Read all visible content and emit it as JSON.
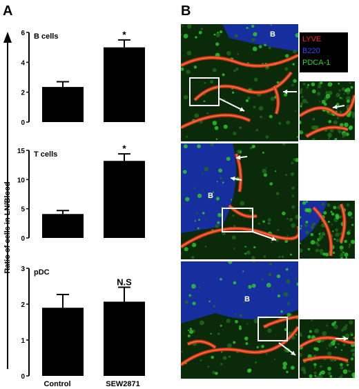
{
  "panel_labels": {
    "a": "A",
    "b": "B"
  },
  "ylabel": "Ratio of cells in LN/Blood",
  "chart_data": [
    {
      "type": "bar",
      "title": "B cells",
      "categories": [
        "Control",
        "SEW2871"
      ],
      "values": [
        2.35,
        5.0
      ],
      "errors": [
        0.35,
        0.5
      ],
      "ylim": [
        0,
        6
      ],
      "yticks": [
        "0",
        "2",
        "4",
        "6"
      ],
      "annotations": [
        "",
        "*"
      ]
    },
    {
      "type": "bar",
      "title": "T cells",
      "categories": [
        "Control",
        "SEW2871"
      ],
      "values": [
        4.1,
        13.2
      ],
      "errors": [
        0.6,
        1.2
      ],
      "ylim": [
        0,
        15
      ],
      "yticks": [
        "0",
        "5",
        "10",
        "15"
      ],
      "annotations": [
        "",
        "*"
      ]
    },
    {
      "type": "bar",
      "title": "pDC",
      "categories": [
        "Control",
        "SEW2871"
      ],
      "values": [
        1.9,
        2.07
      ],
      "errors": [
        0.37,
        0.4
      ],
      "ylim": [
        0,
        3
      ],
      "yticks": [
        "0",
        "1",
        "2",
        "3"
      ],
      "annotations": [
        "",
        "N.S"
      ]
    }
  ],
  "xlabels": [
    "Control",
    "SEW2871"
  ],
  "micrographs": {
    "legend": [
      {
        "label": "LYVE",
        "color": "#ff2020"
      },
      {
        "label": "B220",
        "color": "#3344ff"
      },
      {
        "label": "PDCA-1",
        "color": "#22dd22"
      }
    ],
    "region_label": "B",
    "colors": {
      "blue": "#1a2fb8",
      "green": "#1f6a1a",
      "red": "#e8351c",
      "arrow": "#ffffff"
    }
  }
}
